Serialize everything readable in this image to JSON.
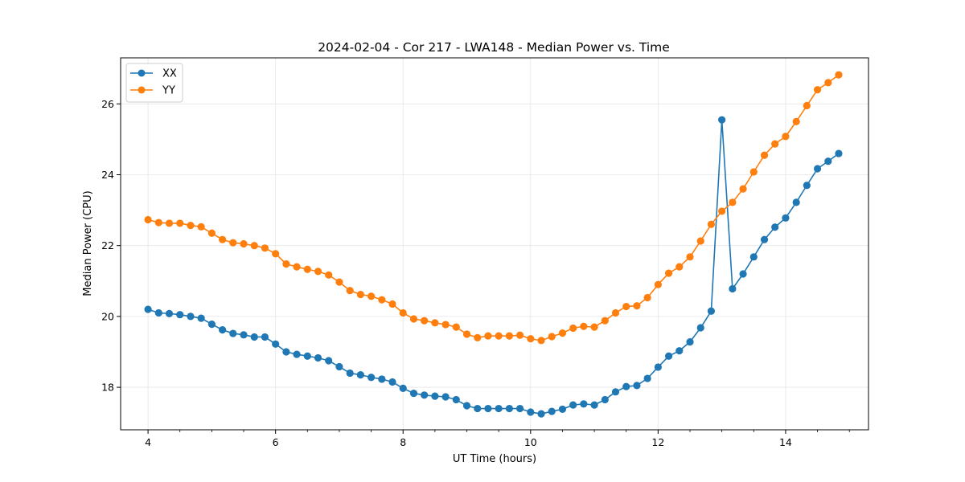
{
  "chart_data": {
    "type": "line",
    "title": "2024-02-04 - Cor 217 - LWA148 - Median Power vs. Time",
    "xlabel": "UT Time (hours)",
    "ylabel": "Median Power (CPU)",
    "xlim": [
      3.57,
      15.3
    ],
    "ylim": [
      16.8,
      27.3
    ],
    "xticks": [
      4,
      6,
      8,
      10,
      12,
      14
    ],
    "xtick_labels": [
      "4",
      "6",
      "8",
      "10",
      "12",
      "14"
    ],
    "yticks": [
      18,
      20,
      22,
      24,
      26
    ],
    "ytick_labels": [
      "18",
      "20",
      "22",
      "24",
      "26"
    ],
    "grid": true,
    "legend_position": "top-left",
    "x": [
      4.0,
      4.167,
      4.333,
      4.5,
      4.667,
      4.833,
      5.0,
      5.167,
      5.333,
      5.5,
      5.667,
      5.833,
      6.0,
      6.167,
      6.333,
      6.5,
      6.667,
      6.833,
      7.0,
      7.167,
      7.333,
      7.5,
      7.667,
      7.833,
      8.0,
      8.167,
      8.333,
      8.5,
      8.667,
      8.833,
      9.0,
      9.167,
      9.333,
      9.5,
      9.667,
      9.833,
      10.0,
      10.167,
      10.333,
      10.5,
      10.667,
      10.833,
      11.0,
      11.167,
      11.333,
      11.5,
      11.667,
      11.833,
      12.0,
      12.167,
      12.333,
      12.5,
      12.667,
      12.833,
      13.0,
      13.167,
      13.333,
      13.5,
      13.667,
      13.833,
      14.0,
      14.167,
      14.333,
      14.5,
      14.667,
      14.833
    ],
    "series": [
      {
        "name": "XX",
        "color": "#1f77b4",
        "values": [
          20.2,
          20.1,
          20.08,
          20.05,
          20.0,
          19.95,
          19.78,
          19.62,
          19.52,
          19.48,
          19.42,
          19.42,
          19.22,
          19.0,
          18.93,
          18.88,
          18.83,
          18.75,
          18.58,
          18.4,
          18.35,
          18.28,
          18.23,
          18.15,
          17.97,
          17.83,
          17.78,
          17.75,
          17.73,
          17.65,
          17.48,
          17.4,
          17.4,
          17.4,
          17.4,
          17.4,
          17.3,
          17.25,
          17.32,
          17.38,
          17.5,
          17.53,
          17.5,
          17.65,
          17.87,
          18.02,
          18.05,
          18.25,
          18.57,
          18.88,
          19.03,
          19.28,
          19.68,
          20.15,
          25.55,
          20.78,
          21.2,
          21.68,
          22.17,
          22.52,
          22.78,
          23.22,
          23.7,
          24.17,
          24.38,
          24.6
        ]
      },
      {
        "name": "YY",
        "color": "#ff7f0e",
        "values": [
          22.73,
          22.65,
          22.63,
          22.63,
          22.57,
          22.53,
          22.35,
          22.17,
          22.08,
          22.05,
          22.0,
          21.93,
          21.77,
          21.48,
          21.4,
          21.33,
          21.27,
          21.17,
          20.97,
          20.73,
          20.62,
          20.57,
          20.47,
          20.35,
          20.1,
          19.93,
          19.88,
          19.82,
          19.77,
          19.7,
          19.5,
          19.4,
          19.45,
          19.45,
          19.45,
          19.47,
          19.37,
          19.32,
          19.43,
          19.53,
          19.67,
          19.72,
          19.7,
          19.88,
          20.1,
          20.28,
          20.3,
          20.53,
          20.9,
          21.22,
          21.4,
          21.68,
          22.13,
          22.6,
          22.97,
          23.22,
          23.6,
          24.08,
          24.55,
          24.87,
          25.08,
          25.5,
          25.95,
          26.4,
          26.6,
          26.82
        ]
      }
    ]
  }
}
